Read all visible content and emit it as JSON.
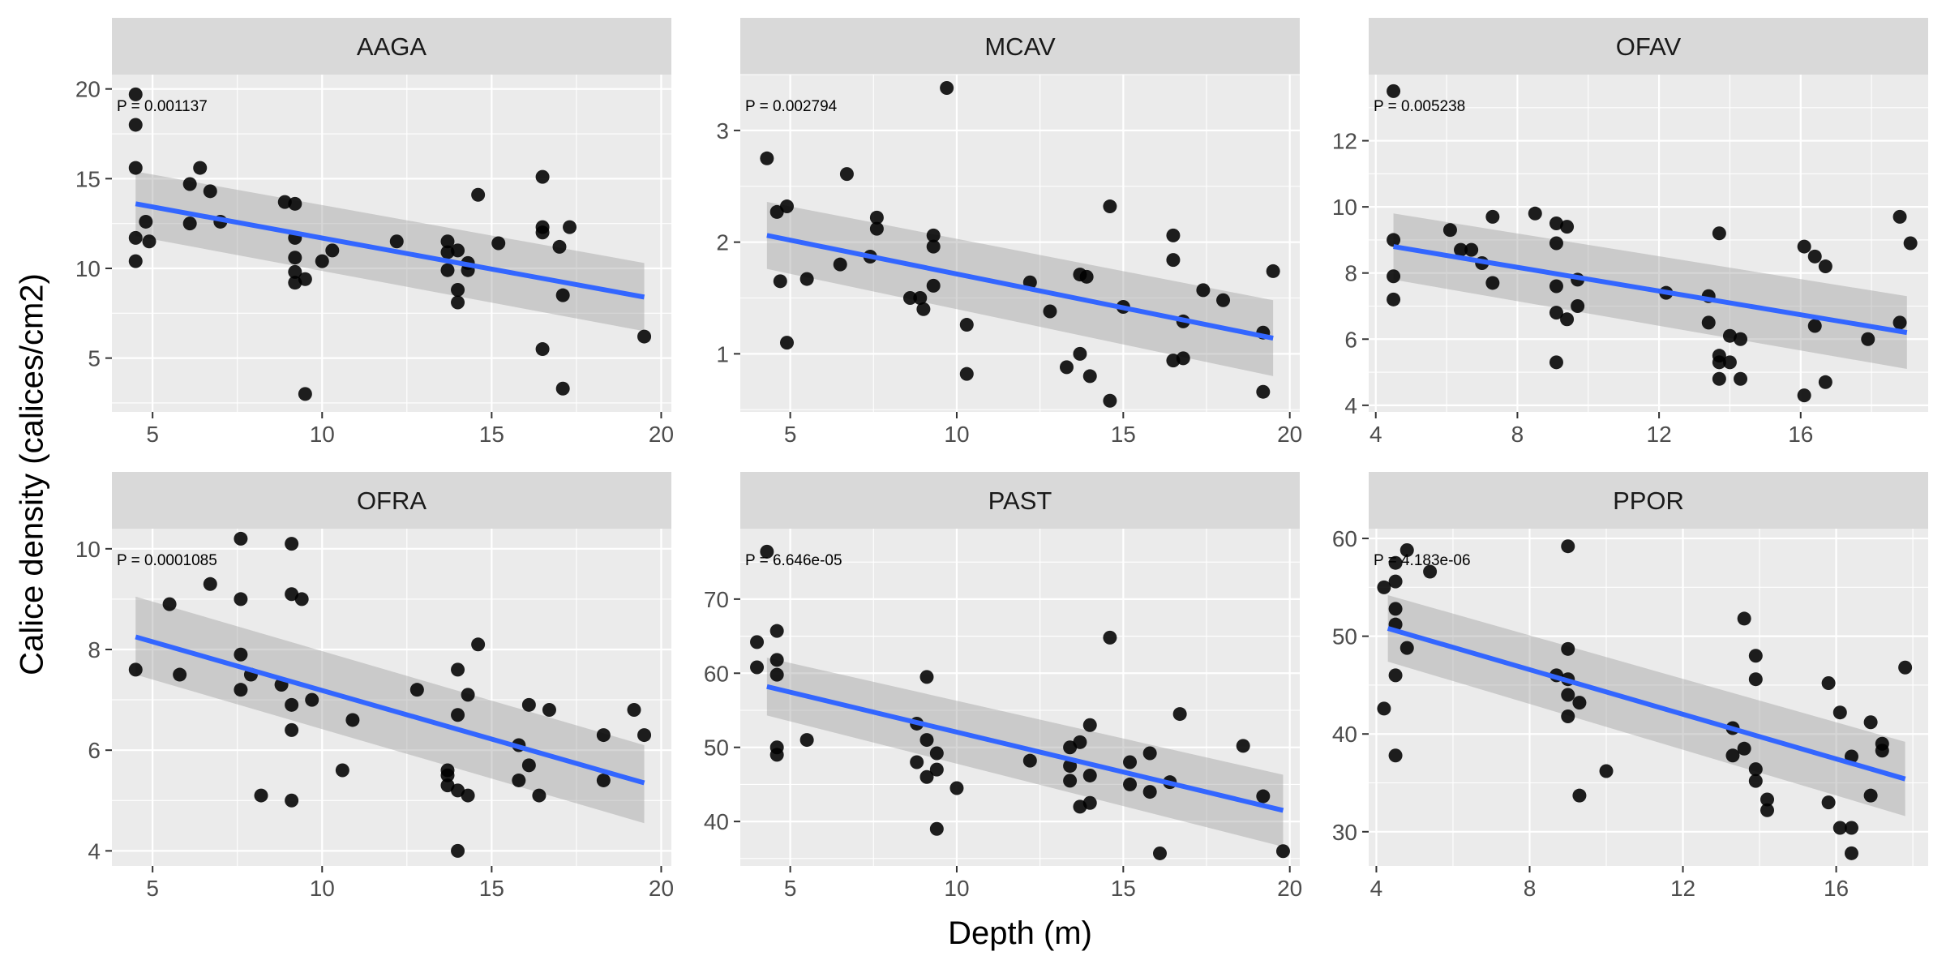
{
  "chart_data": {
    "type": "scatter",
    "xlabel": "Depth (m)",
    "ylabel": "Calice density (calices/cm2)",
    "colors": {
      "points": "#000000",
      "fit_line": "#3366ff",
      "confidence_band": "#999999",
      "panel": "#ebebeb",
      "strip": "#d9d9d9"
    },
    "grid": true,
    "panels": [
      {
        "name": "AAGA",
        "annotation": "P = 0.001137",
        "xlim": [
          3.8,
          20.3
        ],
        "ylim": [
          2.0,
          20.8
        ],
        "xticks": [
          5,
          10,
          15,
          20
        ],
        "yticks": [
          5,
          10,
          15,
          20
        ],
        "fit": {
          "x": [
            4.5,
            19.5
          ],
          "y": [
            13.6,
            8.4
          ],
          "ci_lower": [
            11.8,
            6.5
          ],
          "ci_upper": [
            15.4,
            10.3
          ]
        },
        "points": [
          [
            4.5,
            19.7
          ],
          [
            4.5,
            18.0
          ],
          [
            4.5,
            15.6
          ],
          [
            4.5,
            11.7
          ],
          [
            4.5,
            10.4
          ],
          [
            4.8,
            12.6
          ],
          [
            4.9,
            11.5
          ],
          [
            6.1,
            14.7
          ],
          [
            6.1,
            12.5
          ],
          [
            6.4,
            15.6
          ],
          [
            6.7,
            14.3
          ],
          [
            7.0,
            12.6
          ],
          [
            8.9,
            13.7
          ],
          [
            9.2,
            13.6
          ],
          [
            9.2,
            11.7
          ],
          [
            9.2,
            10.6
          ],
          [
            9.2,
            9.8
          ],
          [
            9.2,
            9.2
          ],
          [
            9.5,
            9.4
          ],
          [
            9.5,
            3.0
          ],
          [
            10.0,
            10.4
          ],
          [
            10.3,
            11.0
          ],
          [
            12.2,
            11.5
          ],
          [
            13.7,
            11.5
          ],
          [
            13.7,
            10.9
          ],
          [
            13.7,
            9.9
          ],
          [
            14.0,
            11.0
          ],
          [
            14.0,
            8.8
          ],
          [
            14.0,
            8.1
          ],
          [
            14.3,
            10.3
          ],
          [
            14.3,
            9.9
          ],
          [
            14.6,
            14.1
          ],
          [
            15.2,
            11.4
          ],
          [
            16.5,
            15.1
          ],
          [
            16.5,
            12.3
          ],
          [
            16.5,
            12.0
          ],
          [
            16.5,
            5.5
          ],
          [
            17.0,
            11.2
          ],
          [
            17.1,
            8.5
          ],
          [
            17.1,
            3.3
          ],
          [
            17.3,
            12.3
          ],
          [
            19.5,
            6.2
          ]
        ]
      },
      {
        "name": "MCAV",
        "annotation": "P = 0.002794",
        "xlim": [
          3.5,
          20.3
        ],
        "ylim": [
          0.48,
          3.5
        ],
        "xticks": [
          5,
          10,
          15,
          20
        ],
        "yticks": [
          1,
          2,
          3
        ],
        "fit": {
          "x": [
            4.3,
            19.5
          ],
          "y": [
            2.06,
            1.14
          ],
          "ci_lower": [
            1.76,
            0.8
          ],
          "ci_upper": [
            2.36,
            1.48
          ]
        },
        "points": [
          [
            4.3,
            2.75
          ],
          [
            4.6,
            2.27
          ],
          [
            4.7,
            1.65
          ],
          [
            4.9,
            2.32
          ],
          [
            4.9,
            1.1
          ],
          [
            5.5,
            1.67
          ],
          [
            6.5,
            1.8
          ],
          [
            6.7,
            2.61
          ],
          [
            7.4,
            1.87
          ],
          [
            7.6,
            2.22
          ],
          [
            7.6,
            2.12
          ],
          [
            8.6,
            1.5
          ],
          [
            8.9,
            1.5
          ],
          [
            9.0,
            1.4
          ],
          [
            9.3,
            2.06
          ],
          [
            9.3,
            1.96
          ],
          [
            9.3,
            1.61
          ],
          [
            9.7,
            3.38
          ],
          [
            10.3,
            1.26
          ],
          [
            10.3,
            0.82
          ],
          [
            12.2,
            1.64
          ],
          [
            12.8,
            1.38
          ],
          [
            13.3,
            0.88
          ],
          [
            13.7,
            1.71
          ],
          [
            13.7,
            1.0
          ],
          [
            13.9,
            1.69
          ],
          [
            14.0,
            0.8
          ],
          [
            14.6,
            2.32
          ],
          [
            14.6,
            0.58
          ],
          [
            15.0,
            1.42
          ],
          [
            16.5,
            2.06
          ],
          [
            16.5,
            1.84
          ],
          [
            16.5,
            0.94
          ],
          [
            16.8,
            1.29
          ],
          [
            16.8,
            0.96
          ],
          [
            17.4,
            1.57
          ],
          [
            18.0,
            1.48
          ],
          [
            19.2,
            1.19
          ],
          [
            19.2,
            0.66
          ],
          [
            19.5,
            1.74
          ]
        ]
      },
      {
        "name": "OFAV",
        "annotation": "P = 0.005238",
        "xlim": [
          3.8,
          19.6
        ],
        "ylim": [
          3.8,
          14.0
        ],
        "xticks": [
          4,
          8,
          12,
          16
        ],
        "yticks": [
          4,
          6,
          8,
          10,
          12
        ],
        "fit": {
          "x": [
            4.5,
            19.0
          ],
          "y": [
            8.8,
            6.2
          ],
          "ci_lower": [
            7.8,
            5.1
          ],
          "ci_upper": [
            9.8,
            7.3
          ]
        },
        "points": [
          [
            4.5,
            13.5
          ],
          [
            4.5,
            9.0
          ],
          [
            4.5,
            7.9
          ],
          [
            4.5,
            7.2
          ],
          [
            6.1,
            9.3
          ],
          [
            6.4,
            8.7
          ],
          [
            6.7,
            8.7
          ],
          [
            7.0,
            8.3
          ],
          [
            7.3,
            9.7
          ],
          [
            7.3,
            7.7
          ],
          [
            8.5,
            9.8
          ],
          [
            9.1,
            9.5
          ],
          [
            9.1,
            8.9
          ],
          [
            9.1,
            7.6
          ],
          [
            9.1,
            6.8
          ],
          [
            9.1,
            5.3
          ],
          [
            9.4,
            9.4
          ],
          [
            9.4,
            6.6
          ],
          [
            9.7,
            7.8
          ],
          [
            9.7,
            7.0
          ],
          [
            12.2,
            7.4
          ],
          [
            13.4,
            7.3
          ],
          [
            13.4,
            6.5
          ],
          [
            13.7,
            9.2
          ],
          [
            13.7,
            5.5
          ],
          [
            13.7,
            5.3
          ],
          [
            13.7,
            4.8
          ],
          [
            14.0,
            6.1
          ],
          [
            14.0,
            5.3
          ],
          [
            14.3,
            6.0
          ],
          [
            14.3,
            4.8
          ],
          [
            16.1,
            8.8
          ],
          [
            16.1,
            4.3
          ],
          [
            16.4,
            8.5
          ],
          [
            16.4,
            6.4
          ],
          [
            16.7,
            8.2
          ],
          [
            16.7,
            4.7
          ],
          [
            17.9,
            6.0
          ],
          [
            18.8,
            9.7
          ],
          [
            18.8,
            6.5
          ],
          [
            19.1,
            8.9
          ]
        ]
      },
      {
        "name": "OFRA",
        "annotation": "P = 0.0001085",
        "xlim": [
          3.8,
          20.3
        ],
        "ylim": [
          3.7,
          10.4
        ],
        "xticks": [
          5,
          10,
          15,
          20
        ],
        "yticks": [
          4,
          6,
          8,
          10
        ],
        "fit": {
          "x": [
            4.5,
            19.5
          ],
          "y": [
            8.25,
            5.35
          ],
          "ci_lower": [
            7.5,
            4.55
          ],
          "ci_upper": [
            9.05,
            6.1
          ]
        },
        "points": [
          [
            4.5,
            7.6
          ],
          [
            5.5,
            8.9
          ],
          [
            5.8,
            7.5
          ],
          [
            6.7,
            9.3
          ],
          [
            7.6,
            10.2
          ],
          [
            7.6,
            9.0
          ],
          [
            7.6,
            7.9
          ],
          [
            7.6,
            7.2
          ],
          [
            7.9,
            7.5
          ],
          [
            8.2,
            5.1
          ],
          [
            8.8,
            7.3
          ],
          [
            9.1,
            10.1
          ],
          [
            9.1,
            9.1
          ],
          [
            9.1,
            6.9
          ],
          [
            9.1,
            6.4
          ],
          [
            9.1,
            5.0
          ],
          [
            9.4,
            9.0
          ],
          [
            9.7,
            7.0
          ],
          [
            10.6,
            5.6
          ],
          [
            10.9,
            6.6
          ],
          [
            12.8,
            7.2
          ],
          [
            13.7,
            5.6
          ],
          [
            13.7,
            5.5
          ],
          [
            13.7,
            5.3
          ],
          [
            14.0,
            7.6
          ],
          [
            14.0,
            6.7
          ],
          [
            14.0,
            5.2
          ],
          [
            14.0,
            4.0
          ],
          [
            14.3,
            7.1
          ],
          [
            14.3,
            5.1
          ],
          [
            14.6,
            8.1
          ],
          [
            15.8,
            5.4
          ],
          [
            15.8,
            6.1
          ],
          [
            16.1,
            6.9
          ],
          [
            16.1,
            5.7
          ],
          [
            16.4,
            5.1
          ],
          [
            16.7,
            6.8
          ],
          [
            18.3,
            6.3
          ],
          [
            18.3,
            5.4
          ],
          [
            19.2,
            6.8
          ],
          [
            19.5,
            6.3
          ]
        ]
      },
      {
        "name": "PAST",
        "annotation": "P = 6.646e-05",
        "xlim": [
          3.5,
          20.3
        ],
        "ylim": [
          34.0,
          79.5
        ],
        "xticks": [
          5,
          10,
          15,
          20
        ],
        "yticks": [
          40,
          50,
          60,
          70
        ],
        "fit": {
          "x": [
            4.3,
            19.8
          ],
          "y": [
            58.2,
            41.5
          ],
          "ci_lower": [
            54.3,
            36.6
          ],
          "ci_upper": [
            62.1,
            46.3
          ]
        },
        "points": [
          [
            4.0,
            64.2
          ],
          [
            4.0,
            60.8
          ],
          [
            4.3,
            76.4
          ],
          [
            4.6,
            65.7
          ],
          [
            4.6,
            61.8
          ],
          [
            4.6,
            59.8
          ],
          [
            4.6,
            50.0
          ],
          [
            4.6,
            49.0
          ],
          [
            5.5,
            51.0
          ],
          [
            8.8,
            53.2
          ],
          [
            8.8,
            48.0
          ],
          [
            9.1,
            59.5
          ],
          [
            9.1,
            51.0
          ],
          [
            9.1,
            46.0
          ],
          [
            9.4,
            49.2
          ],
          [
            9.4,
            47.0
          ],
          [
            9.4,
            39.0
          ],
          [
            10.0,
            44.5
          ],
          [
            12.2,
            48.2
          ],
          [
            13.4,
            50.0
          ],
          [
            13.4,
            47.5
          ],
          [
            13.4,
            45.5
          ],
          [
            13.7,
            50.7
          ],
          [
            13.7,
            42.0
          ],
          [
            14.0,
            53.0
          ],
          [
            14.0,
            46.2
          ],
          [
            14.0,
            42.5
          ],
          [
            14.6,
            64.8
          ],
          [
            15.2,
            48.0
          ],
          [
            15.2,
            45.0
          ],
          [
            15.8,
            49.2
          ],
          [
            15.8,
            44.0
          ],
          [
            16.1,
            35.7
          ],
          [
            16.4,
            45.3
          ],
          [
            16.7,
            54.5
          ],
          [
            18.6,
            50.2
          ],
          [
            19.2,
            43.4
          ],
          [
            19.8,
            36.0
          ]
        ]
      },
      {
        "name": "PPOR",
        "annotation": "P = 4.183e-06",
        "xlim": [
          3.8,
          18.4
        ],
        "ylim": [
          26.5,
          61.0
        ],
        "xticks": [
          4,
          8,
          12,
          16
        ],
        "yticks": [
          30,
          40,
          50,
          60
        ],
        "fit": {
          "x": [
            4.3,
            17.8
          ],
          "y": [
            50.8,
            35.4
          ],
          "ci_lower": [
            47.4,
            31.6
          ],
          "ci_upper": [
            54.2,
            39.2
          ]
        },
        "points": [
          [
            4.2,
            55.0
          ],
          [
            4.2,
            42.6
          ],
          [
            4.5,
            57.5
          ],
          [
            4.5,
            55.6
          ],
          [
            4.5,
            52.8
          ],
          [
            4.5,
            51.2
          ],
          [
            4.5,
            46.0
          ],
          [
            4.5,
            37.8
          ],
          [
            4.8,
            58.8
          ],
          [
            4.8,
            48.8
          ],
          [
            5.4,
            56.6
          ],
          [
            8.7,
            46.0
          ],
          [
            9.0,
            59.2
          ],
          [
            9.0,
            48.7
          ],
          [
            9.0,
            45.6
          ],
          [
            9.0,
            44.0
          ],
          [
            9.0,
            41.8
          ],
          [
            9.3,
            43.2
          ],
          [
            9.3,
            33.7
          ],
          [
            10.0,
            36.2
          ],
          [
            13.3,
            40.6
          ],
          [
            13.3,
            37.8
          ],
          [
            13.6,
            51.8
          ],
          [
            13.6,
            38.5
          ],
          [
            13.9,
            48.0
          ],
          [
            13.9,
            45.6
          ],
          [
            13.9,
            36.4
          ],
          [
            13.9,
            35.2
          ],
          [
            14.2,
            33.3
          ],
          [
            14.2,
            32.2
          ],
          [
            15.8,
            45.2
          ],
          [
            15.8,
            33.0
          ],
          [
            16.1,
            42.2
          ],
          [
            16.1,
            30.4
          ],
          [
            16.4,
            30.4
          ],
          [
            16.4,
            27.8
          ],
          [
            16.4,
            37.7
          ],
          [
            16.9,
            41.2
          ],
          [
            16.9,
            33.7
          ],
          [
            17.2,
            39.0
          ],
          [
            17.2,
            38.3
          ],
          [
            17.8,
            46.8
          ]
        ]
      }
    ]
  }
}
